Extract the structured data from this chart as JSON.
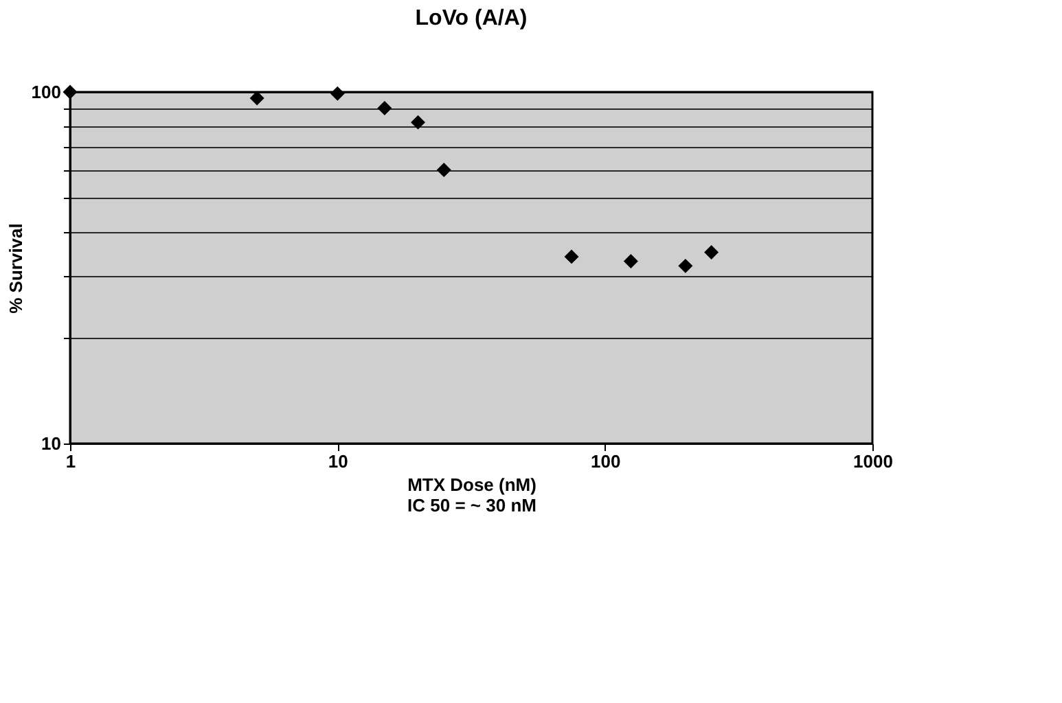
{
  "chart_data": {
    "type": "scatter",
    "title": "LoVo (A/A)",
    "xlabel": "MTX Dose (nM)",
    "ylabel": "% Survival",
    "annotations": [
      "IC 50 = ~ 30 nM"
    ],
    "x": [
      1,
      5,
      10,
      15,
      20,
      25,
      75,
      125,
      200,
      250
    ],
    "series": [
      {
        "color": "#000000",
        "values": [
          100,
          96,
          99,
          90,
          82,
          60,
          34,
          33,
          32,
          35
        ]
      }
    ],
    "log": "xy",
    "xlim": [
      1,
      1000
    ],
    "xticks": [
      1,
      10,
      100,
      1000
    ],
    "ylim": [
      10,
      100
    ],
    "yticks": [
      10,
      {
        "value": 20,
        "label": null
      },
      {
        "value": 30,
        "label": null
      },
      {
        "value": 40,
        "label": null
      },
      {
        "value": 50,
        "label": null
      },
      {
        "value": 60,
        "label": null
      },
      {
        "value": 70,
        "label": null
      },
      {
        "value": 80,
        "label": null
      },
      {
        "value": 90,
        "label": null
      },
      100
    ],
    "grid": "y",
    "marker": "diamond"
  }
}
